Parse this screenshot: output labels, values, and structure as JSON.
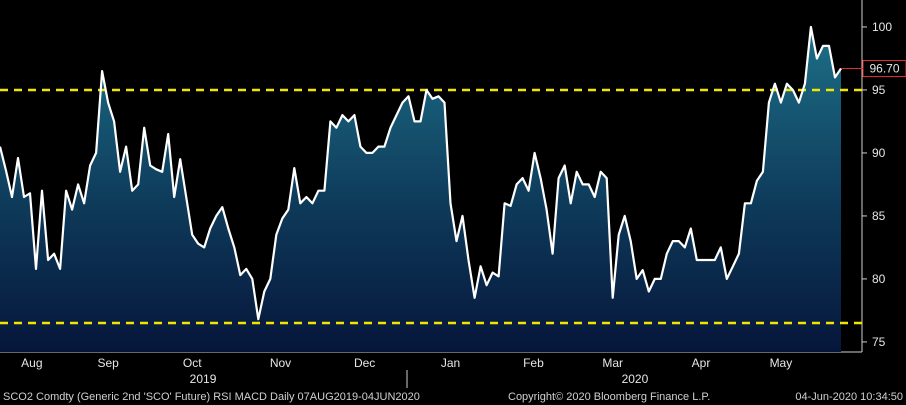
{
  "chart_data": {
    "type": "area",
    "series": [
      {
        "name": "SCO2 Comdty",
        "color": "#ffffff",
        "values": [
          90.5,
          88.6,
          86.5,
          89.6,
          86.5,
          86.8,
          80.8,
          87,
          81.5,
          82,
          80.8,
          87,
          85.5,
          87.5,
          86,
          89,
          90,
          96.5,
          94,
          92.5,
          88.5,
          90.5,
          87,
          87.5,
          92,
          89,
          88.7,
          88.5,
          91.5,
          86.5,
          89.5,
          86.5,
          83.5,
          82.8,
          82.5,
          84,
          85,
          85.7,
          84,
          82.5,
          80.3,
          80.8,
          80,
          76.8,
          79,
          80,
          83.5,
          84.8,
          85.5,
          88.8,
          86,
          86.5,
          86,
          87,
          87,
          92.5,
          92,
          93,
          92.5,
          93,
          90.5,
          90,
          90,
          90.5,
          90.5,
          92,
          93,
          94,
          94.5,
          92.5,
          92.5,
          95,
          94.3,
          94.5,
          94,
          86,
          83,
          85,
          81.5,
          78.5,
          81,
          79.5,
          80.5,
          80.2,
          86,
          85.8,
          87.5,
          88,
          87,
          90,
          88,
          85.5,
          82,
          88,
          89,
          86,
          88.5,
          87.5,
          87.5,
          86.5,
          88.5,
          88,
          78.5,
          83.5,
          85,
          83,
          80,
          80.7,
          79,
          80,
          80,
          82,
          83,
          83,
          82.5,
          84,
          81.5,
          81.5,
          81.5,
          81.5,
          82.5,
          80,
          81,
          82,
          86,
          86,
          87.8,
          88.5,
          94,
          95.5,
          94,
          95.5,
          95,
          94,
          95.5,
          100,
          97.5,
          98.5,
          98.5,
          96,
          96.7
        ]
      }
    ],
    "last_value_label": "96.70",
    "xlim": [
      0,
      143.5
    ],
    "xticks": [
      {
        "value": 5.3,
        "label": "Aug"
      },
      {
        "value": 18,
        "label": "Sep"
      },
      {
        "value": 32,
        "label": "Oct"
      },
      {
        "value": 46.7,
        "label": "Nov"
      },
      {
        "value": 60.7,
        "label": "Dec"
      },
      {
        "value": 75,
        "label": "Jan"
      },
      {
        "value": 88.8,
        "label": "Feb"
      },
      {
        "value": 102,
        "label": "Mar"
      },
      {
        "value": 116.7,
        "label": "Apr"
      },
      {
        "value": 130,
        "label": "May"
      }
    ],
    "year_ticks": [
      {
        "value": 33.8,
        "label": "2019"
      },
      {
        "value": 105.7,
        "label": "2020"
      }
    ],
    "ylim": [
      74.2,
      102.14
    ],
    "yticks": [
      75,
      80,
      85,
      90,
      95,
      100
    ],
    "reference_lines": [
      95,
      76.5
    ],
    "reference_color": "#f2e600",
    "footer": {
      "security": "SCO2 Comdty (Generic 2nd 'SCO' Future) RSI MACD  Daily 07AUG2019-04JUN2020",
      "copyright": "Copyright© 2020 Bloomberg Finance L.P.",
      "timestamp": "04-Jun-2020 10:34:50"
    }
  }
}
